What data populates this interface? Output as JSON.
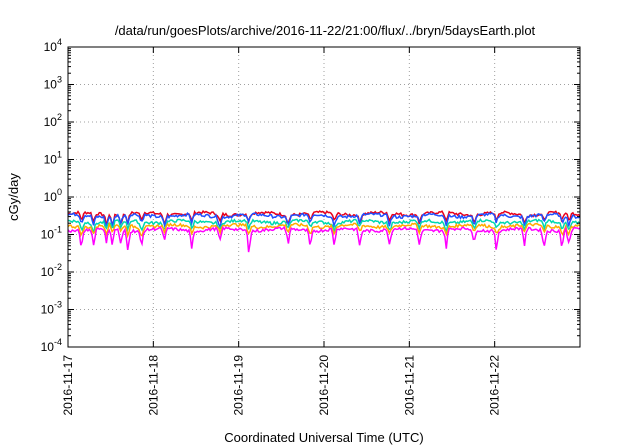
{
  "chart_data": {
    "type": "line",
    "title": "/data/run/goesPlots/archive/2016-11-22/21:00/flux/../bryn/5daysEarth.plot",
    "xlabel": "Coordinated Universal Time (UTC)",
    "ylabel": "cGy/day",
    "yscale": "log",
    "ylim": [
      0.0001,
      10000
    ],
    "yticks": [
      {
        "base": "10",
        "exp": "-4",
        "value": 0.0001
      },
      {
        "base": "10",
        "exp": "-3",
        "value": 0.001
      },
      {
        "base": "10",
        "exp": "-2",
        "value": 0.01
      },
      {
        "base": "10",
        "exp": "-1",
        "value": 0.1
      },
      {
        "base": "10",
        "exp": "0",
        "value": 1
      },
      {
        "base": "10",
        "exp": "1",
        "value": 10
      },
      {
        "base": "10",
        "exp": "2",
        "value": 100
      },
      {
        "base": "10",
        "exp": "3",
        "value": 1000
      },
      {
        "base": "10",
        "exp": "4",
        "value": 10000
      }
    ],
    "xlim": [
      "2016-11-17",
      "2016-11-23"
    ],
    "xticks": [
      "2016-11-17",
      "2016-11-18",
      "2016-11-19",
      "2016-11-20",
      "2016-11-21",
      "2016-11-22"
    ],
    "grid": true,
    "legend": "none",
    "series": [
      {
        "color": "#e8001c",
        "base": 0.36,
        "dip": 0.09
      },
      {
        "color": "#1f4fff",
        "base": 0.32,
        "dip": 0.08
      },
      {
        "color": "#00d8b0",
        "base": 0.22,
        "dip": 0.06
      },
      {
        "color": "#ffaa00",
        "base": 0.17,
        "dip": 0.05
      },
      {
        "color": "#ff00ff",
        "base": 0.135,
        "dip": 0.045
      }
    ]
  }
}
